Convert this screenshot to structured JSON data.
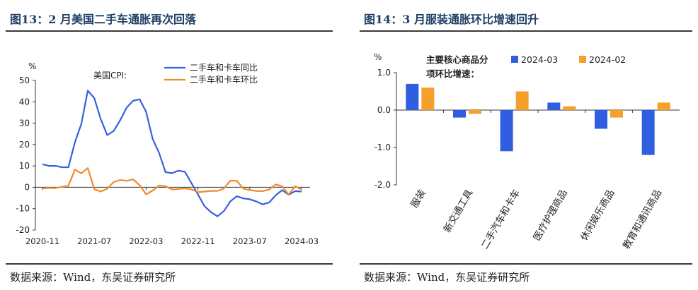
{
  "left": {
    "title": "图13：2 月美国二手车通胀再次回落",
    "source": "数据来源：Wind，东吴证券研究所",
    "chart_data": {
      "type": "line",
      "ylabel": "%",
      "annotation": "美国CPI:",
      "ylim": [
        -20,
        50
      ],
      "yticks": [
        -20,
        -10,
        0,
        10,
        20,
        30,
        40,
        50
      ],
      "xticklabels": [
        "2020-11",
        "2021-07",
        "2022-03",
        "2022-11",
        "2023-07",
        "2024-03"
      ],
      "xtick_index": [
        0,
        8,
        16,
        24,
        32,
        40
      ],
      "x": [
        "2020-11",
        "2020-12",
        "2021-01",
        "2021-02",
        "2021-03",
        "2021-04",
        "2021-05",
        "2021-06",
        "2021-07",
        "2021-08",
        "2021-09",
        "2021-10",
        "2021-11",
        "2021-12",
        "2022-01",
        "2022-02",
        "2022-03",
        "2022-04",
        "2022-05",
        "2022-06",
        "2022-07",
        "2022-08",
        "2022-09",
        "2022-10",
        "2022-11",
        "2022-12",
        "2023-01",
        "2023-02",
        "2023-03",
        "2023-04",
        "2023-05",
        "2023-06",
        "2023-07",
        "2023-08",
        "2023-09",
        "2023-10",
        "2023-11",
        "2023-12",
        "2024-01",
        "2024-02",
        "2024-03"
      ],
      "series": [
        {
          "name": "二手车和卡车同比",
          "color": "#3560e0",
          "values": [
            10.8,
            10.0,
            10.0,
            9.4,
            9.4,
            21.0,
            29.7,
            45.2,
            41.7,
            31.9,
            24.4,
            26.4,
            31.4,
            37.3,
            40.5,
            41.2,
            35.3,
            22.7,
            16.1,
            7.1,
            6.6,
            7.8,
            7.2,
            2.0,
            -3.3,
            -8.8,
            -11.6,
            -13.6,
            -11.2,
            -6.6,
            -4.2,
            -5.2,
            -5.6,
            -6.6,
            -8.0,
            -7.1,
            -3.8,
            -1.3,
            -3.5,
            -1.8,
            -2.0
          ]
        },
        {
          "name": "二手车和卡车环比",
          "color": "#f08a2c",
          "values": [
            -0.5,
            -0.3,
            -0.4,
            0.2,
            0.7,
            8.3,
            6.5,
            9.0,
            -0.8,
            -2.0,
            -0.7,
            2.5,
            3.4,
            3.0,
            3.7,
            1.0,
            -3.3,
            -1.5,
            0.8,
            0.5,
            -1.0,
            -0.8,
            -0.5,
            -1.0,
            -2.3,
            -2.0,
            -1.7,
            -1.7,
            -0.6,
            3.1,
            3.0,
            -0.6,
            -1.3,
            -1.7,
            -1.8,
            -1.0,
            1.3,
            0.5,
            -3.4,
            0.5,
            -1.1
          ]
        }
      ]
    }
  },
  "right": {
    "title": "图14：3 月服装通胀环比增速回升",
    "source": "数据来源：Wind，东吴证券研究所",
    "chart_data": {
      "type": "bar",
      "ylabel": "%",
      "legend_title_line1": "主要核心商品分",
      "legend_title_line2": "项环比增速：",
      "ylim": [
        -2.0,
        1.0
      ],
      "yticks": [
        -2.0,
        -1.0,
        0.0,
        1.0
      ],
      "yticklabels": [
        "-2.0",
        "-1.0",
        "0.0",
        "1.0"
      ],
      "categories": [
        "服装",
        "新交通工具",
        "二手汽车和卡车",
        "医疗护理商品",
        "休闲娱乐商品",
        "教育和通讯商品"
      ],
      "series": [
        {
          "name": "2024-03",
          "color": "#2f5fe0",
          "values": [
            0.7,
            -0.2,
            -1.1,
            0.2,
            -0.5,
            -1.2
          ]
        },
        {
          "name": "2024-02",
          "color": "#f5a02a",
          "values": [
            0.6,
            -0.1,
            0.5,
            0.1,
            -0.2,
            0.2
          ]
        }
      ]
    }
  }
}
